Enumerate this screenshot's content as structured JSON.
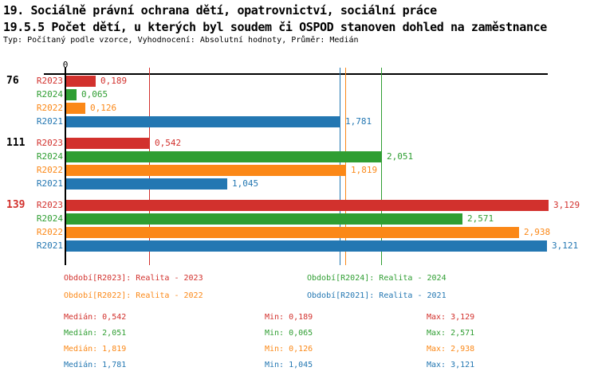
{
  "header": {
    "title_line1": "19. Sociálně právní ochrana dětí, opatrovnictví, sociální práce",
    "title_line2": "19.5.5 Počet dětí, u kterých byl soudem či OSPOD stanoven dohled na zaměstnance",
    "subtitle": "Typ: Počítaný podle vzorce, Vyhodnocení: Absolutní hodnoty, Průměr: Medián"
  },
  "colors": {
    "R2023": "#d2312d",
    "R2024": "#2f9e32",
    "R2022": "#fb8817",
    "R2021": "#2377b2",
    "axis": "#000000"
  },
  "axis": {
    "zero_label": "0"
  },
  "chart_data": {
    "type": "bar",
    "orientation": "horizontal",
    "value_format": "czech-decimal-comma",
    "xlim": [
      0,
      3.129
    ],
    "grid": "median-lines-per-series",
    "series_order": [
      "R2023",
      "R2024",
      "R2022",
      "R2021"
    ],
    "groups": [
      {
        "label": "76",
        "label_color": "#000000",
        "bars": [
          {
            "series": "R2023",
            "value": 0.189,
            "display": "0,189"
          },
          {
            "series": "R2024",
            "value": 0.065,
            "display": "0,065"
          },
          {
            "series": "R2022",
            "value": 0.126,
            "display": "0,126"
          },
          {
            "series": "R2021",
            "value": 1.781,
            "display": "1,781"
          }
        ]
      },
      {
        "label": "111",
        "label_color": "#000000",
        "bars": [
          {
            "series": "R2023",
            "value": 0.542,
            "display": "0,542"
          },
          {
            "series": "R2024",
            "value": 2.051,
            "display": "2,051"
          },
          {
            "series": "R2022",
            "value": 1.819,
            "display": "1,819"
          },
          {
            "series": "R2021",
            "value": 1.045,
            "display": "1,045"
          }
        ]
      },
      {
        "label": "139",
        "label_color": "#d2312d",
        "bars": [
          {
            "series": "R2023",
            "value": 3.129,
            "display": "3,129"
          },
          {
            "series": "R2024",
            "value": 2.571,
            "display": "2,571"
          },
          {
            "series": "R2022",
            "value": 2.938,
            "display": "2,938"
          },
          {
            "series": "R2021",
            "value": 3.121,
            "display": "3,121"
          }
        ]
      }
    ],
    "median_lines": [
      {
        "series": "R2023",
        "value": 0.542
      },
      {
        "series": "R2024",
        "value": 2.051
      },
      {
        "series": "R2022",
        "value": 1.819
      },
      {
        "series": "R2021",
        "value": 1.781
      }
    ]
  },
  "legend": [
    {
      "series": "R2023",
      "text": "Období[R2023]: Realita - 2023"
    },
    {
      "series": "R2024",
      "text": "Období[R2024]: Realita - 2024"
    },
    {
      "series": "R2022",
      "text": "Období[R2022]: Realita - 2022"
    },
    {
      "series": "R2021",
      "text": "Období[R2021]: Realita - 2021"
    }
  ],
  "stats": [
    {
      "series": "R2023",
      "median": "Medián: 0,542",
      "min": "Min: 0,189",
      "max": "Max: 3,129"
    },
    {
      "series": "R2024",
      "median": "Medián: 2,051",
      "min": "Min: 0,065",
      "max": "Max: 2,571"
    },
    {
      "series": "R2022",
      "median": "Medián: 1,819",
      "min": "Min: 0,126",
      "max": "Max: 2,938"
    },
    {
      "series": "R2021",
      "median": "Medián: 1,781",
      "min": "Min: 1,045",
      "max": "Max: 3,121"
    }
  ]
}
